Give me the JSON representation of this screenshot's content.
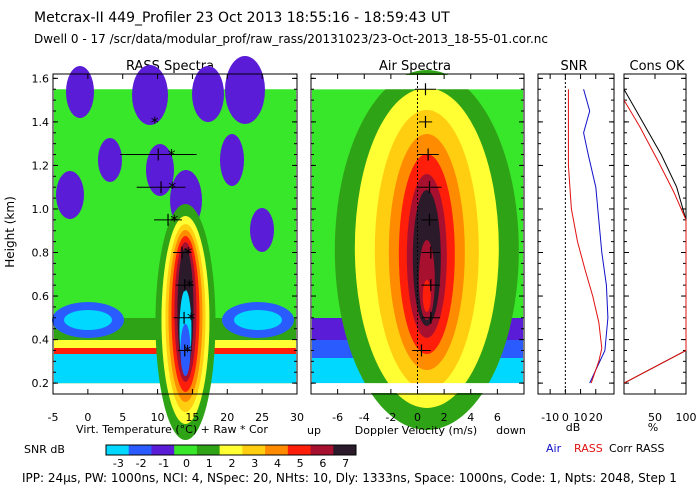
{
  "header": {
    "line1": "Metcrax-II  449_Profiler  23 Oct 2013  18:55:16 - 18:59:43 UT",
    "line2": "Dwell  0 - 17   /scr/data/modular_prof/raw_rass/20131023/23-Oct-2013_18-55-01.cor.nc"
  },
  "footer": "IPP: 24μs,  PW: 1000ns,  NCI: 4,  NSpec: 20, NHts: 10,  Dly: 1333ns,  Space: 1000ns,  Code: 1,  Npts: 2048,  Step 1",
  "colors": {
    "snr_levels": [
      "#00d8ff",
      "#2a5bff",
      "#5a1cd6",
      "#38e62a",
      "#2fa316",
      "#ffff33",
      "#ffce10",
      "#ff8c00",
      "#ff1e0a",
      "#a7102f",
      "#2a1a2a"
    ],
    "air_line": "#1010c8",
    "rass_line": "#e01010",
    "corr_line": "#000000"
  },
  "chart_data": [
    {
      "type": "heatmap",
      "title": "RASS Spectra",
      "xlabel": "Virt. Temperature (°C)   + Raw   * Cor",
      "ylabel": "Height (km)",
      "xlim": [
        -5,
        30
      ],
      "ylim": [
        0.15,
        1.62
      ],
      "x_ticks": [
        "-5",
        "0",
        "5",
        "10",
        "15",
        "20",
        "25",
        "30"
      ],
      "y_ticks": [
        "0.2",
        "0.4",
        "0.6",
        "0.8",
        "1.0",
        "1.2",
        "1.4",
        "1.6"
      ],
      "data_extent": [
        0.2,
        1.55
      ],
      "raw_points": [
        {
          "height": 0.35,
          "temp": 13.9,
          "err": 1.0
        },
        {
          "height": 0.5,
          "temp": 13.8,
          "err": 1.5
        },
        {
          "height": 0.65,
          "temp": 13.9,
          "err": 1.3
        },
        {
          "height": 0.8,
          "temp": 13.5,
          "err": 1.3
        },
        {
          "height": 0.95,
          "temp": 11.5,
          "err": 2.0
        },
        {
          "height": 1.1,
          "temp": 10.5,
          "err": 3.5
        },
        {
          "height": 1.25,
          "temp": 10.1,
          "err": 5.5
        }
      ],
      "cor_points": [
        {
          "height": 0.35,
          "temp": 14.3
        },
        {
          "height": 0.5,
          "temp": 14.8
        },
        {
          "height": 0.65,
          "temp": 14.6
        },
        {
          "height": 0.8,
          "temp": 14.4
        },
        {
          "height": 0.95,
          "temp": 12.4
        },
        {
          "height": 1.1,
          "temp": 12.1
        },
        {
          "height": 1.25,
          "temp": 12.0
        },
        {
          "height": 1.4,
          "temp": 9.6
        }
      ]
    },
    {
      "type": "heatmap",
      "title": "Air Spectra",
      "xlabel": "Doppler Velocity (m/s)",
      "xlabel_left": "up",
      "xlabel_right": "down",
      "xlim": [
        -8,
        8
      ],
      "x_ticks": [
        "-6",
        "-4",
        "-2",
        "0",
        "2",
        "4",
        "6"
      ],
      "points": [
        {
          "height": 0.35,
          "vel": 0.3,
          "err": 0.7
        },
        {
          "height": 0.5,
          "vel": 1.0,
          "err": 0.7
        },
        {
          "height": 0.65,
          "vel": 1.0,
          "err": 0.7
        },
        {
          "height": 0.8,
          "vel": 1.0,
          "err": 0.7
        },
        {
          "height": 0.95,
          "vel": 0.9,
          "err": 0.6
        },
        {
          "height": 1.1,
          "vel": 0.9,
          "err": 0.9
        },
        {
          "height": 1.25,
          "vel": 0.8,
          "err": 0.8
        },
        {
          "height": 1.4,
          "vel": 0.6,
          "err": 0.5
        },
        {
          "height": 1.55,
          "vel": 0.6,
          "err": 0.8
        }
      ]
    },
    {
      "type": "line",
      "title": "SNR",
      "xlabel": "dB",
      "xlim": [
        -18,
        32
      ],
      "x_ticks": [
        "-10",
        "0",
        "10",
        "20"
      ],
      "series": [
        {
          "name": "Air",
          "color": "#1010c8",
          "points": [
            [
              12,
              1.55
            ],
            [
              16,
              1.45
            ],
            [
              12,
              1.35
            ],
            [
              15,
              1.25
            ],
            [
              20,
              1.1
            ],
            [
              22,
              0.95
            ],
            [
              24,
              0.8
            ],
            [
              27,
              0.65
            ],
            [
              28,
              0.5
            ],
            [
              26,
              0.35
            ],
            [
              16,
              0.2
            ]
          ]
        },
        {
          "name": "RASS",
          "color": "#e01010",
          "points": [
            [
              2,
              1.55
            ],
            [
              2,
              1.2
            ],
            [
              4,
              1.0
            ],
            [
              8,
              0.85
            ],
            [
              13,
              0.72
            ],
            [
              18,
              0.6
            ],
            [
              22,
              0.48
            ],
            [
              24,
              0.36
            ],
            [
              22,
              0.3
            ],
            [
              17,
              0.2
            ]
          ]
        }
      ],
      "legend": [
        "Air",
        "RASS",
        "Corr RASS"
      ]
    },
    {
      "type": "line",
      "title": "Cons OK",
      "xlabel": "%",
      "xlim": [
        0,
        100
      ],
      "x_ticks": [
        "50",
        "100"
      ],
      "series": [
        {
          "name": "Corr RASS",
          "color": "#000000",
          "points": [
            [
              0,
              1.55
            ],
            [
              30,
              1.4
            ],
            [
              60,
              1.25
            ],
            [
              85,
              1.1
            ],
            [
              100,
              0.95
            ],
            [
              100,
              0.35
            ],
            [
              0,
              0.2
            ]
          ]
        },
        {
          "name": "RASS",
          "color": "#e01010",
          "points": [
            [
              0,
              1.5
            ],
            [
              25,
              1.38
            ],
            [
              55,
              1.22
            ],
            [
              80,
              1.08
            ],
            [
              100,
              0.95
            ],
            [
              100,
              0.35
            ],
            [
              0,
              0.2
            ]
          ]
        }
      ]
    }
  ],
  "colorbar": {
    "label": "SNR dB",
    "ticks": [
      "-3",
      "-2",
      "-1",
      "0",
      "1",
      "2",
      "3",
      "4",
      "5",
      "6",
      "7"
    ]
  }
}
